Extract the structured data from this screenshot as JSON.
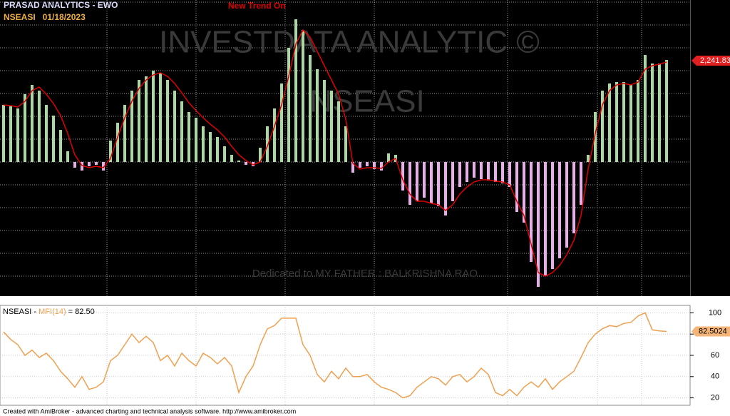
{
  "chart_data": [
    {
      "type": "bar",
      "title": "PRASAD ANALYTICS - EWO",
      "subtitle": "NSEASI   01/18/2023",
      "annotation": "New Trend On",
      "watermark": [
        "INVESTDATA ANALYTIC ©",
        "NSEASI",
        "Dedicated to MY FATHER : BALKRISHNA RAO"
      ],
      "price_label": "2,241.83",
      "ylim": [
        -183,
        222
      ],
      "series": [
        {
          "type": "bar",
          "colors": {
            "positive": "#a9d9a1",
            "negative": "#e9aee9"
          },
          "values": [
            80,
            78,
            75,
            95,
            108,
            100,
            80,
            65,
            45,
            15,
            -8,
            -12,
            -6,
            -4,
            -12,
            30,
            55,
            80,
            100,
            115,
            120,
            128,
            125,
            115,
            100,
            85,
            70,
            62,
            50,
            42,
            35,
            22,
            10,
            2,
            -4,
            -6,
            20,
            50,
            75,
            110,
            160,
            200,
            185,
            150,
            130,
            115,
            100,
            85,
            50,
            -15,
            -8,
            -6,
            -10,
            -12,
            12,
            10,
            -40,
            -60,
            -55,
            -50,
            -58,
            -62,
            -75,
            -55,
            -35,
            -28,
            -22,
            -24,
            -26,
            -28,
            -30,
            -35,
            -70,
            -85,
            -140,
            -175,
            -160,
            -150,
            -135,
            -120,
            -100,
            -60,
            10,
            70,
            100,
            110,
            112,
            112,
            108,
            115,
            150,
            138,
            138,
            143
          ]
        },
        {
          "type": "line",
          "color": "#e00000",
          "values": [
            80,
            79,
            77,
            85,
            100,
            105,
            95,
            82,
            65,
            40,
            10,
            -5,
            -8,
            -6,
            -8,
            5,
            35,
            62,
            85,
            103,
            115,
            122,
            125,
            120,
            110,
            97,
            83,
            72,
            62,
            53,
            45,
            35,
            22,
            10,
            2,
            -4,
            0,
            22,
            50,
            80,
            120,
            165,
            185,
            175,
            155,
            135,
            115,
            95,
            60,
            -2,
            -10,
            -8,
            -8,
            -9,
            0,
            5,
            -25,
            -45,
            -55,
            -55,
            -58,
            -60,
            -68,
            -60,
            -45,
            -35,
            -28,
            -25,
            -25,
            -27,
            -28,
            -32,
            -55,
            -75,
            -115,
            -155,
            -160,
            -155,
            -145,
            -130,
            -110,
            -75,
            -10,
            40,
            80,
            100,
            108,
            110,
            108,
            112,
            130,
            135,
            137,
            140
          ]
        }
      ]
    },
    {
      "type": "line",
      "legend": {
        "ticker": "NSEASI - ",
        "indicator": "MFI(14)",
        "value_text": " = 82.50"
      },
      "ylim": [
        13,
        107
      ],
      "yticks": [
        20,
        40,
        60,
        80,
        100
      ],
      "grid": true,
      "series": [
        {
          "name": "MFI(14)",
          "color": "#f0a050",
          "values": [
            82,
            75,
            70,
            60,
            65,
            58,
            62,
            55,
            45,
            38,
            30,
            40,
            28,
            30,
            35,
            55,
            60,
            70,
            80,
            72,
            78,
            72,
            55,
            60,
            50,
            62,
            55,
            50,
            62,
            58,
            52,
            58,
            50,
            25,
            40,
            50,
            70,
            85,
            88,
            95,
            95,
            95,
            70,
            60,
            42,
            35,
            45,
            38,
            48,
            40,
            40,
            42,
            35,
            30,
            28,
            25,
            20,
            22,
            30,
            35,
            40,
            38,
            32,
            40,
            42,
            35,
            40,
            48,
            42,
            25,
            22,
            28,
            22,
            30,
            35,
            30,
            38,
            28,
            35,
            40,
            45,
            58,
            72,
            80,
            85,
            88,
            87,
            90,
            91,
            97,
            100,
            84,
            83,
            82.5024
          ],
          "value_labels": {
            "93": "82.5024"
          }
        }
      ]
    }
  ],
  "footer": "Created with AmiBroker - advanced charting and technical analysis software. http://www.amibroker.com"
}
